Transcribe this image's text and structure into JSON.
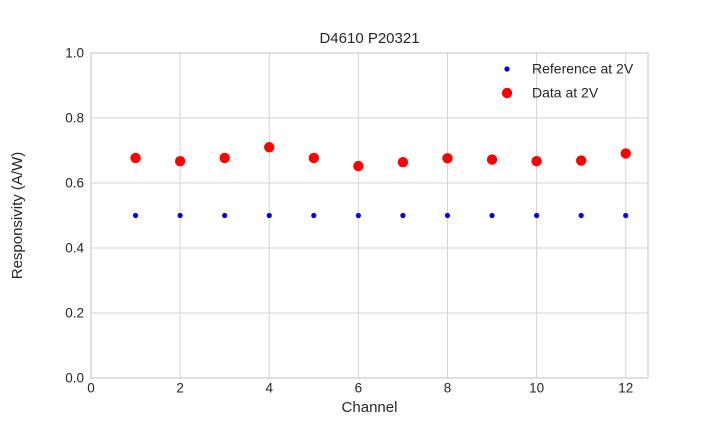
{
  "chart_data": {
    "type": "scatter",
    "title": "D4610 P20321",
    "xlabel": "Channel",
    "ylabel": "Responsivity (A/W)",
    "xlim": [
      0,
      12.5
    ],
    "ylim": [
      0,
      1.0
    ],
    "grid": true,
    "legend_position": "upper right",
    "xticks": [
      0,
      2,
      4,
      6,
      8,
      10,
      12
    ],
    "xtick_labels": [
      "0",
      "2",
      "4",
      "6",
      "8",
      "10",
      "12"
    ],
    "yticks": [
      0.0,
      0.2,
      0.4,
      0.6,
      0.8,
      1.0
    ],
    "ytick_labels": [
      "0.0",
      "0.2",
      "0.4",
      "0.6",
      "0.8",
      "1.0"
    ],
    "x": [
      1,
      2,
      3,
      4,
      5,
      6,
      7,
      8,
      9,
      10,
      11,
      12
    ],
    "series": [
      {
        "name": "Reference at 2V",
        "color": "#0000ee",
        "marker_radius": 2.6,
        "values": [
          0.5,
          0.5,
          0.5,
          0.5,
          0.5,
          0.5,
          0.5,
          0.5,
          0.5,
          0.5,
          0.5,
          0.5
        ]
      },
      {
        "name": "Data at 2V",
        "color": "#ff0000",
        "marker_radius": 5.2,
        "values": [
          0.677,
          0.667,
          0.677,
          0.71,
          0.677,
          0.652,
          0.664,
          0.676,
          0.672,
          0.667,
          0.669,
          0.691
        ]
      }
    ],
    "colors": {
      "grid": "#d3d3d3",
      "spine": "#cccccc",
      "text": "#262626",
      "background": "#ffffff"
    }
  }
}
